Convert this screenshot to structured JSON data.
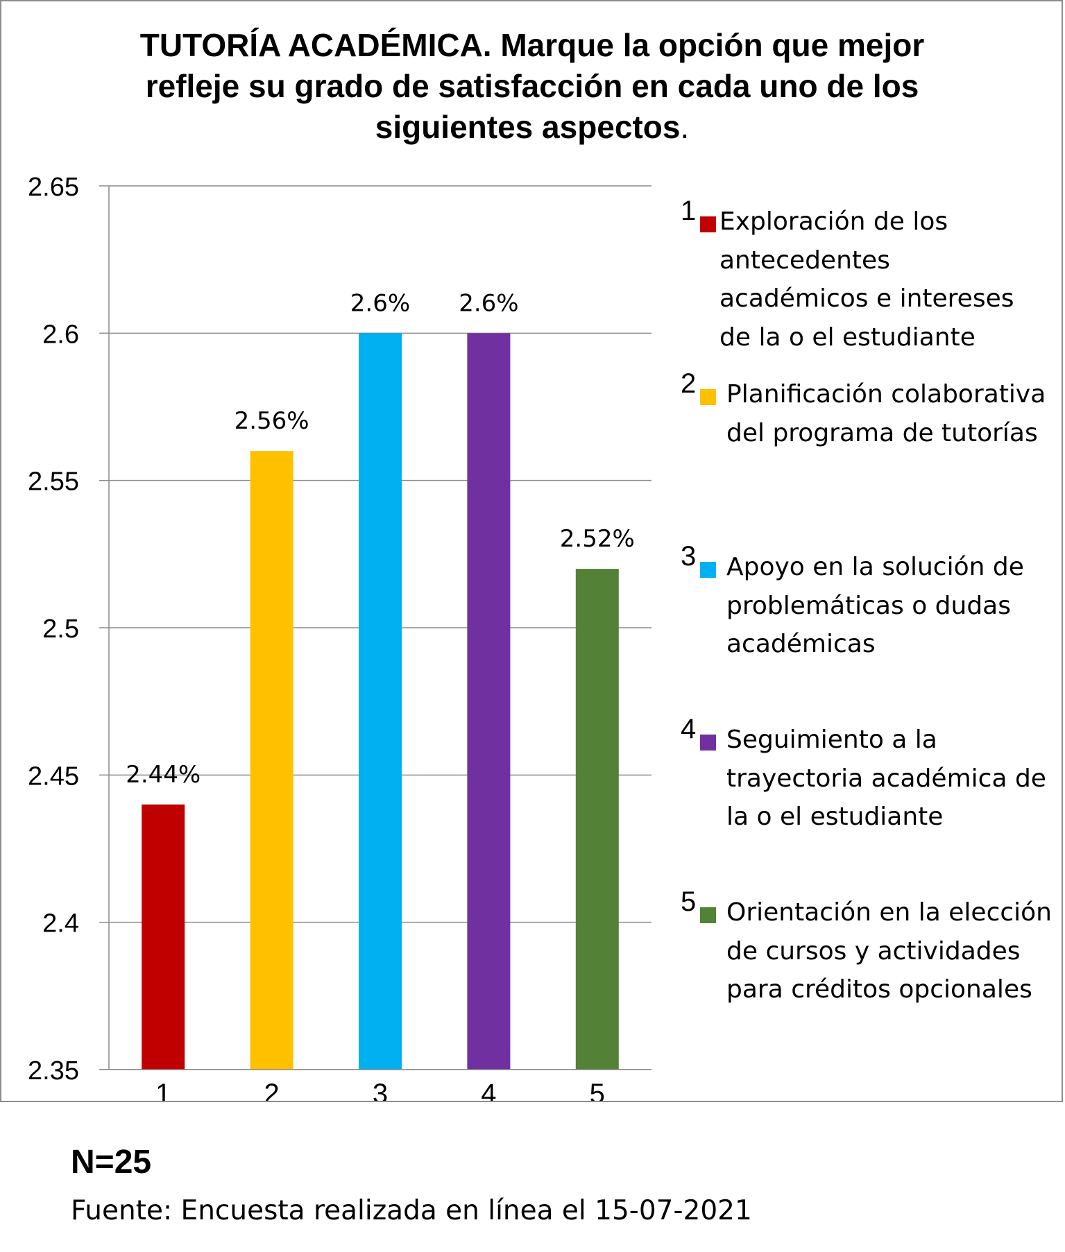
{
  "chart_data": {
    "type": "bar",
    "title": "TUTORÍA ACADÉMICA. Marque la opción que mejor refleje su grado de satisfacción en cada uno de los siguientes aspectos.",
    "categories": [
      "1",
      "2",
      "3",
      "4",
      "5"
    ],
    "values": [
      2.44,
      2.56,
      2.6,
      2.6,
      2.52
    ],
    "data_labels": [
      "2.44%",
      "2.56%",
      "2.6%",
      "2.6%",
      "2.52%"
    ],
    "colors": [
      "#c00000",
      "#ffc000",
      "#00b0f0",
      "#7030a0",
      "#538135"
    ],
    "ylim": [
      2.35,
      2.65
    ],
    "yticks": [
      "2.35",
      "2.4",
      "2.45",
      "2.5",
      "2.55",
      "2.6",
      "2.65"
    ],
    "ytick_values": [
      2.35,
      2.4,
      2.45,
      2.5,
      2.55,
      2.6,
      2.65
    ],
    "grid": true,
    "xlabel": "",
    "ylabel": "",
    "legend_position": "right",
    "legend": [
      {
        "number": "1",
        "color": "#c00000",
        "label": "Exploración de los antecedentes académicos e intereses de la o el estudiante"
      },
      {
        "number": "2",
        "color": "#ffc000",
        "label": "Planificación colaborativa del programa de tutorías"
      },
      {
        "number": "3",
        "color": "#00b0f0",
        "label": "Apoyo en la solución de problemáticas o dudas académicas"
      },
      {
        "number": "4",
        "color": "#7030a0",
        "label": "Seguimiento a la trayectoria académica de la o el estudiante"
      },
      {
        "number": "5",
        "color": "#538135",
        "label": "Orientación en la elección de cursos y actividades para créditos opcionales"
      }
    ]
  },
  "title_text": {
    "main": "TUTORÍA ACADÉMICA. Marque la opción que mejor refleje su grado de satisfacción en cada uno de los siguientes aspectos",
    "period": "."
  },
  "footer": {
    "n": "N=25",
    "source": "Fuente: Encuesta realizada en línea el 15-07-2021"
  }
}
